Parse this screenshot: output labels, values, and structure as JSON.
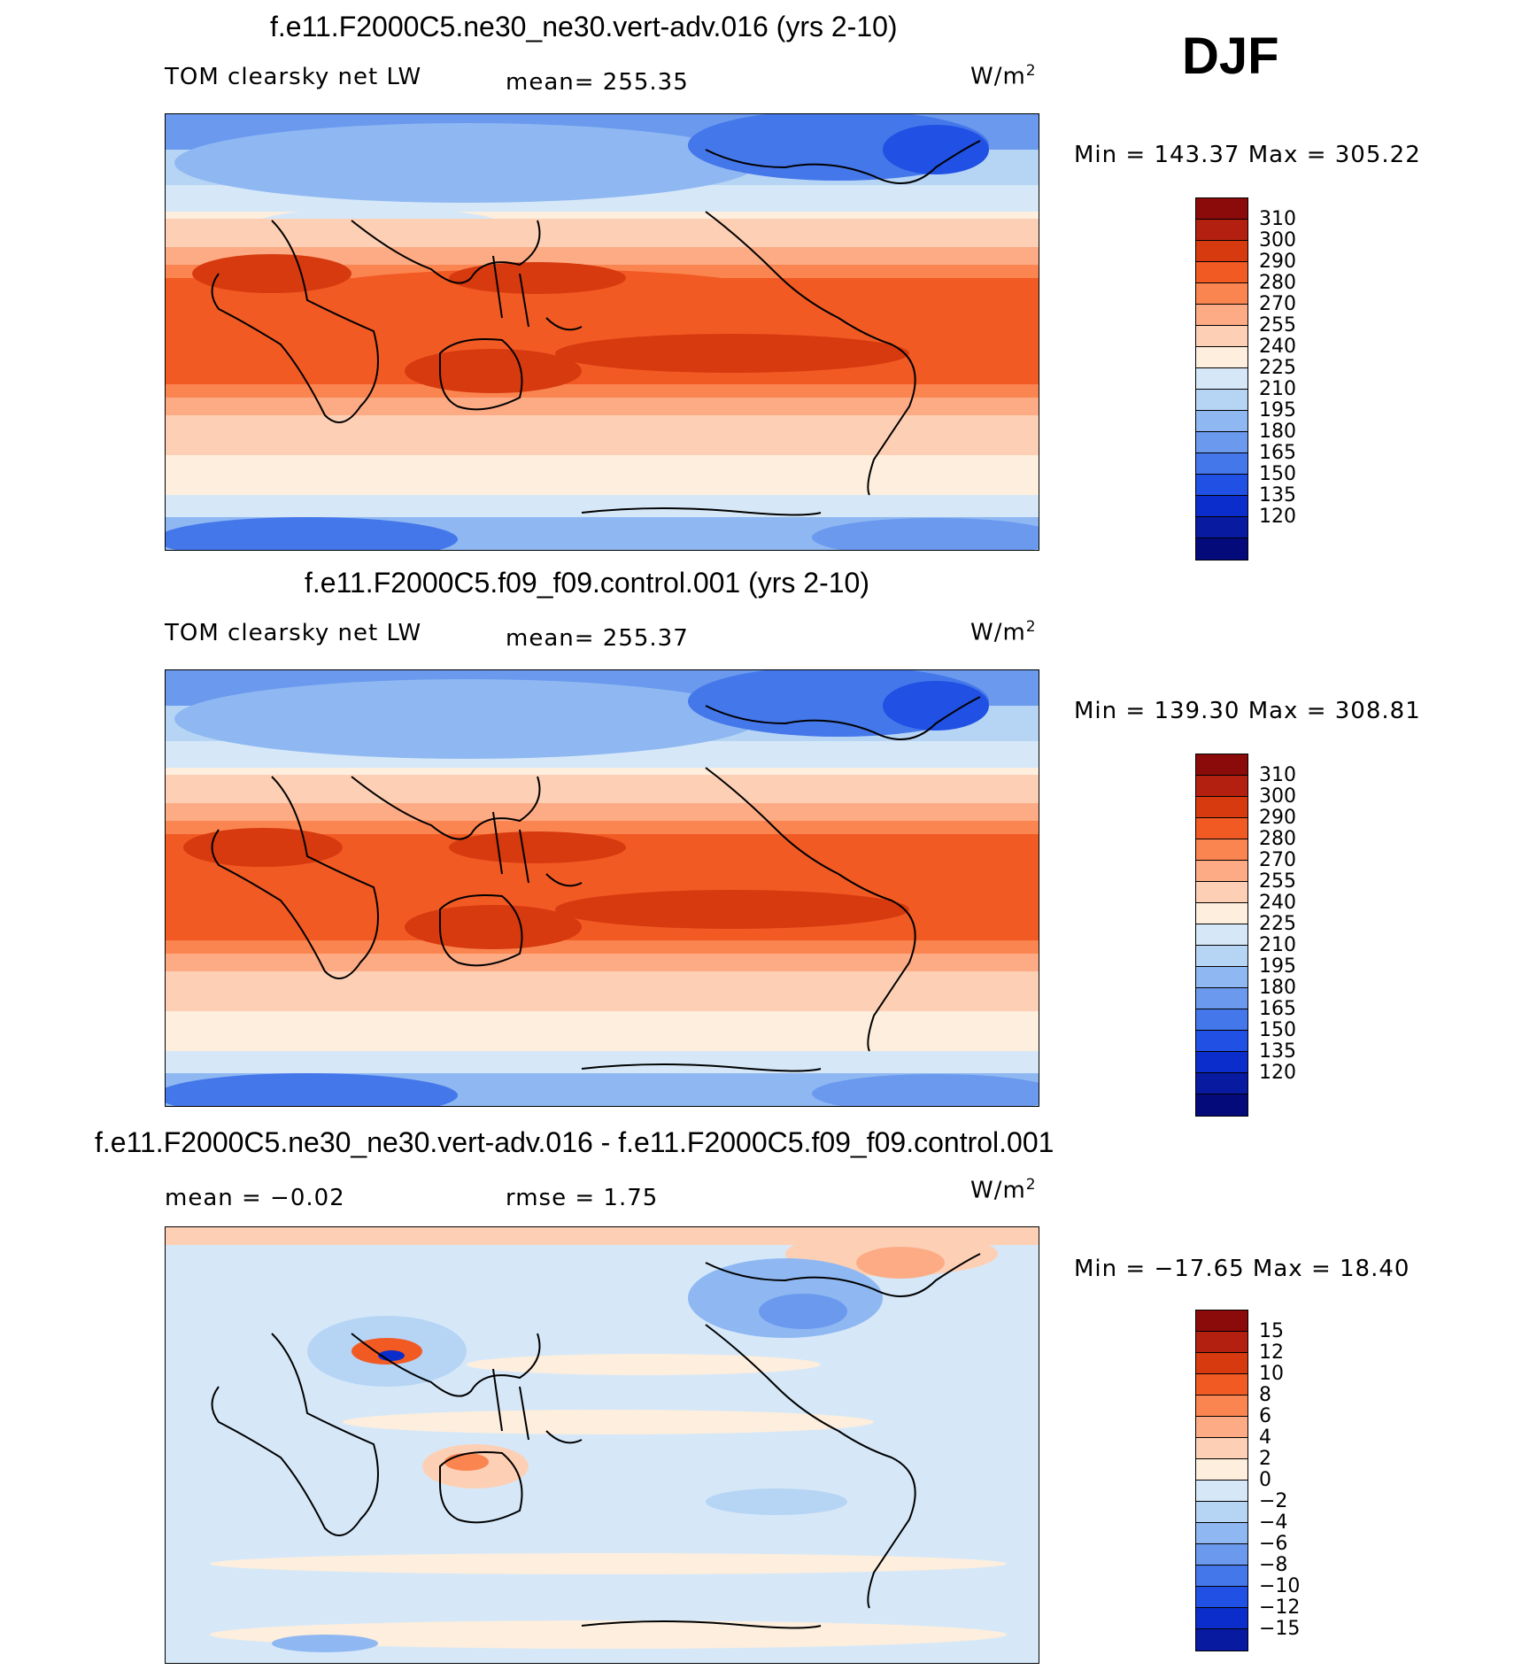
{
  "season": "DJF",
  "panels": [
    {
      "title": "f.e11.F2000C5.ne30_ne30.vert-adv.016 (yrs 2-10)",
      "variable": "TOM clearsky net LW",
      "stat": "mean=  255.35",
      "unit": "W/m",
      "unit_exp": "2",
      "minmax": "Min  =  143.37  Max  =  305.22",
      "colorbar": {
        "colors": [
          "#8b0a0a",
          "#b4200f",
          "#d73a0f",
          "#f25a24",
          "#fb8550",
          "#fcab85",
          "#fdd0b5",
          "#fdeedd",
          "#d6e8f8",
          "#b6d4f4",
          "#8fb8f2",
          "#6a99ee",
          "#4477ea",
          "#2050e4",
          "#0a2dcc",
          "#081aa0",
          "#050a7a"
        ],
        "labels": [
          "310",
          "300",
          "290",
          "280",
          "270",
          "255",
          "240",
          "225",
          "210",
          "195",
          "180",
          "165",
          "150",
          "135",
          "120"
        ]
      }
    },
    {
      "title": "f.e11.F2000C5.f09_f09.control.001 (yrs 2-10)",
      "variable": "TOM clearsky net LW",
      "stat": "mean=  255.37",
      "unit": "W/m",
      "unit_exp": "2",
      "minmax": "Min  =  139.30  Max  =  308.81",
      "colorbar": {
        "colors": [
          "#8b0a0a",
          "#b4200f",
          "#d73a0f",
          "#f25a24",
          "#fb8550",
          "#fcab85",
          "#fdd0b5",
          "#fdeedd",
          "#d6e8f8",
          "#b6d4f4",
          "#8fb8f2",
          "#6a99ee",
          "#4477ea",
          "#2050e4",
          "#0a2dcc",
          "#081aa0",
          "#050a7a"
        ],
        "labels": [
          "310",
          "300",
          "290",
          "280",
          "270",
          "255",
          "240",
          "225",
          "210",
          "195",
          "180",
          "165",
          "150",
          "135",
          "120"
        ]
      }
    },
    {
      "title": "f.e11.F2000C5.ne30_ne30.vert-adv.016 - f.e11.F2000C5.f09_f09.control.001",
      "variable": "mean  =    −0.02",
      "stat": "rmse  =     1.75",
      "unit": "W/m",
      "unit_exp": "2",
      "minmax": "Min  = −17.65  Max  =    18.40",
      "colorbar": {
        "colors": [
          "#8b0a0a",
          "#b4200f",
          "#d73a0f",
          "#f25a24",
          "#fb8550",
          "#fcab85",
          "#fdd0b5",
          "#fdeedd",
          "#d6e8f8",
          "#b6d4f4",
          "#8fb8f2",
          "#6a99ee",
          "#4477ea",
          "#2050e4",
          "#0a2dcc",
          "#081aa0"
        ],
        "labels": [
          "15",
          "12",
          "10",
          "8",
          "6",
          "4",
          "2",
          "0",
          "−2",
          "−4",
          "−6",
          "−8",
          "−10",
          "−12",
          "−15"
        ]
      }
    }
  ]
}
